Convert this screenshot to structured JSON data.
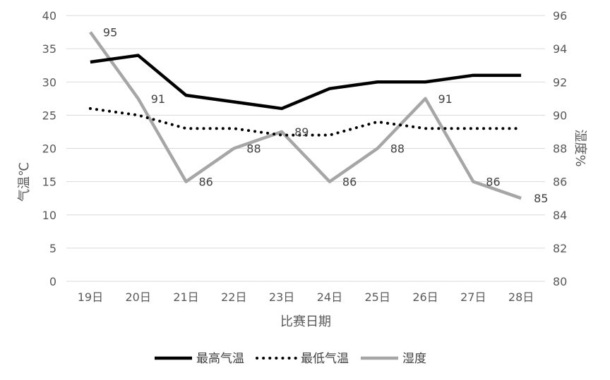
{
  "chart_data": {
    "type": "line",
    "categories": [
      "19日",
      "20日",
      "21日",
      "22日",
      "23日",
      "24日",
      "25日",
      "26日",
      "27日",
      "28日"
    ],
    "xlabel": "比赛日期",
    "ylabel_left": "气温℃",
    "ylabel_right": "湿度%",
    "ylim_left": [
      0,
      40
    ],
    "ylim_right": [
      80,
      96
    ],
    "yticks_left": [
      0,
      5,
      10,
      15,
      20,
      25,
      30,
      35,
      40
    ],
    "yticks_right": [
      80,
      82,
      84,
      86,
      88,
      90,
      92,
      94,
      96
    ],
    "grid": true,
    "legend_position": "bottom",
    "series": [
      {
        "name": "最高气温",
        "axis": "left",
        "style": "solid",
        "color": "#000000",
        "values": [
          33,
          34,
          28,
          27,
          26,
          29,
          30,
          30,
          31,
          31
        ]
      },
      {
        "name": "最低气温",
        "axis": "left",
        "style": "dotted",
        "color": "#000000",
        "values": [
          26,
          25,
          23,
          23,
          22,
          22,
          24,
          23,
          23,
          23
        ]
      },
      {
        "name": "湿度",
        "axis": "right",
        "style": "solid",
        "color": "#a6a6a6",
        "values": [
          95,
          91,
          86,
          88,
          89,
          86,
          88,
          91,
          86,
          85
        ],
        "data_labels": true
      }
    ]
  }
}
